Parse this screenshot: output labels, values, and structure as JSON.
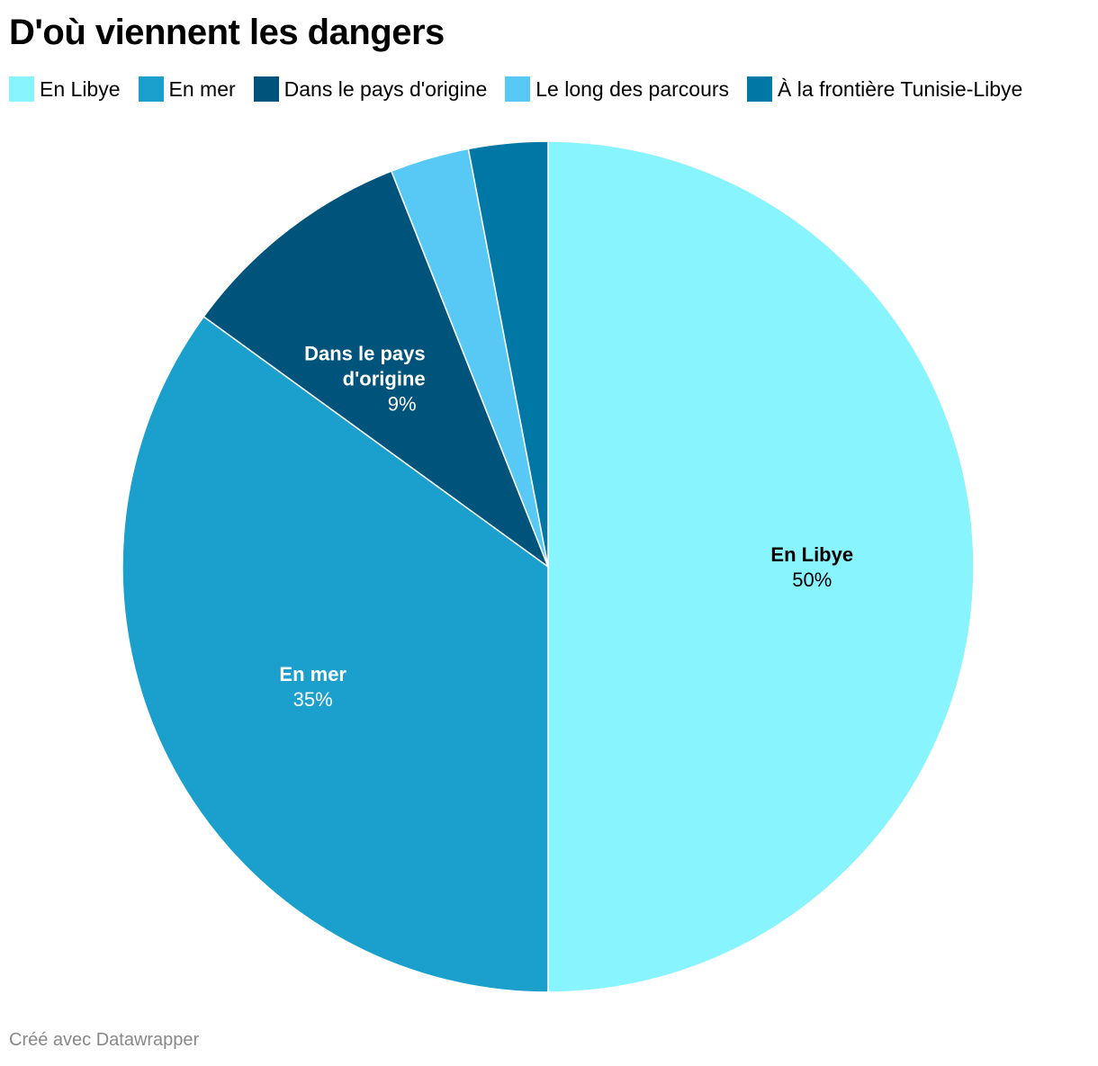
{
  "title": "D'où viennent les dangers",
  "footer": "Créé avec Datawrapper",
  "chart_data": {
    "type": "pie",
    "title": "D'où viennent les dangers",
    "legend_position": "top",
    "slices": [
      {
        "label": "En Libye",
        "value": 50,
        "value_label": "50%",
        "color": "#88f4fe",
        "show_label": true,
        "label_color": "#000000"
      },
      {
        "label": "En mer",
        "value": 35,
        "value_label": "35%",
        "color": "#1ba0cd",
        "show_label": true,
        "label_color": "#ffffff"
      },
      {
        "label": "Dans le pays d'origine",
        "value": 9,
        "value_label": "9%",
        "color": "#00537a",
        "show_label": true,
        "label_color": "#ffffff"
      },
      {
        "label": "Le long des parcours",
        "value": 3,
        "value_label": "3%",
        "color": "#58c9f5",
        "show_label": false,
        "label_color": "#000000"
      },
      {
        "label": "À la frontière Tunisie-Libye",
        "value": 3,
        "value_label": "3%",
        "color": "#0177a6",
        "show_label": false,
        "label_color": "#ffffff"
      }
    ]
  }
}
